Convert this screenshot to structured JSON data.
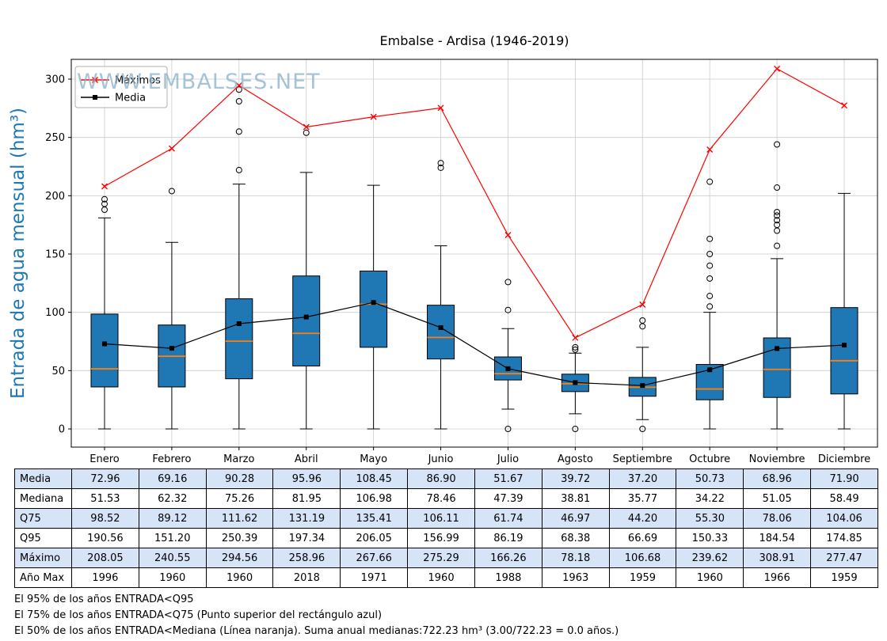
{
  "watermark": "WWW.EMBALSES.NET",
  "chart_data": {
    "type": "boxplot",
    "title": "Embalse - Ardisa (1946-2019)",
    "ylabel": "Entrada de agua mensual (hm³)",
    "categories": [
      "Enero",
      "Febrero",
      "Marzo",
      "Abril",
      "Mayo",
      "Junio",
      "Julio",
      "Agosto",
      "Septiembre",
      "Octubre",
      "Noviembre",
      "Diciembre"
    ],
    "ylim": [
      -16,
      317
    ],
    "yticks": [
      0,
      50,
      100,
      150,
      200,
      250,
      300
    ],
    "grid": true,
    "legend_position": "upper-left",
    "series": [
      {
        "name": "Máximos",
        "color": "#ff0000",
        "marker": "x",
        "values": [
          208.05,
          240.55,
          294.56,
          258.96,
          267.66,
          275.29,
          166.26,
          78.18,
          106.68,
          239.62,
          308.91,
          277.47
        ]
      },
      {
        "name": "Media",
        "color": "#000000",
        "marker": "square",
        "values": [
          72.96,
          69.16,
          90.28,
          95.96,
          108.45,
          86.9,
          51.67,
          39.72,
          37.2,
          50.73,
          68.96,
          71.9
        ]
      }
    ],
    "boxes": [
      {
        "q1": 36,
        "median": 51.53,
        "q3": 98.52,
        "whisker_low": 0,
        "whisker_high": 181,
        "outliers": [
          188,
          193,
          197
        ]
      },
      {
        "q1": 36,
        "median": 62.32,
        "q3": 89.12,
        "whisker_low": 0,
        "whisker_high": 160,
        "outliers": [
          204
        ]
      },
      {
        "q1": 43,
        "median": 75.26,
        "q3": 111.62,
        "whisker_low": 0,
        "whisker_high": 210,
        "outliers": [
          222,
          255,
          281,
          291
        ]
      },
      {
        "q1": 54,
        "median": 81.95,
        "q3": 131.19,
        "whisker_low": 0,
        "whisker_high": 220,
        "outliers": [
          254
        ]
      },
      {
        "q1": 70,
        "median": 106.98,
        "q3": 135.41,
        "whisker_low": 0,
        "whisker_high": 209,
        "outliers": []
      },
      {
        "q1": 60,
        "median": 78.46,
        "q3": 106.11,
        "whisker_low": 0,
        "whisker_high": 157,
        "outliers": [
          224,
          228
        ]
      },
      {
        "q1": 42,
        "median": 47.39,
        "q3": 61.74,
        "whisker_low": 17,
        "whisker_high": 86,
        "outliers": [
          0,
          102,
          126
        ]
      },
      {
        "q1": 32,
        "median": 38.81,
        "q3": 46.97,
        "whisker_low": 13,
        "whisker_high": 65,
        "outliers": [
          0,
          68,
          70
        ]
      },
      {
        "q1": 28,
        "median": 35.77,
        "q3": 44.2,
        "whisker_low": 8,
        "whisker_high": 70,
        "outliers": [
          0,
          88,
          93
        ]
      },
      {
        "q1": 25,
        "median": 34.22,
        "q3": 55.3,
        "whisker_low": 0,
        "whisker_high": 100,
        "outliers": [
          105,
          114,
          129,
          140,
          150,
          163,
          212
        ]
      },
      {
        "q1": 27,
        "median": 51.05,
        "q3": 78.06,
        "whisker_low": 0,
        "whisker_high": 146,
        "outliers": [
          157,
          170,
          175,
          179,
          183,
          186,
          207,
          244
        ]
      },
      {
        "q1": 30,
        "median": 58.49,
        "q3": 104.06,
        "whisker_low": 0,
        "whisker_high": 202,
        "outliers": []
      }
    ],
    "colors": {
      "box_fill": "#1f77b4",
      "box_edge": "#000000",
      "median": "#ff7f0e",
      "grid": "#cccccc",
      "ylabel": "#1f77b4",
      "watermark": "#8aafc8",
      "maximos_line": "#ff0000",
      "media_line": "#000000"
    }
  },
  "table": {
    "rows": [
      {
        "label": "Media",
        "values": [
          "72.96",
          "69.16",
          "90.28",
          "95.96",
          "108.45",
          "86.90",
          "51.67",
          "39.72",
          "37.20",
          "50.73",
          "68.96",
          "71.90"
        ]
      },
      {
        "label": "Mediana",
        "values": [
          "51.53",
          "62.32",
          "75.26",
          "81.95",
          "106.98",
          "78.46",
          "47.39",
          "38.81",
          "35.77",
          "34.22",
          "51.05",
          "58.49"
        ]
      },
      {
        "label": "Q75",
        "values": [
          "98.52",
          "89.12",
          "111.62",
          "131.19",
          "135.41",
          "106.11",
          "61.74",
          "46.97",
          "44.20",
          "55.30",
          "78.06",
          "104.06"
        ]
      },
      {
        "label": "Q95",
        "values": [
          "190.56",
          "151.20",
          "250.39",
          "197.34",
          "206.05",
          "156.99",
          "86.19",
          "68.38",
          "66.69",
          "150.33",
          "184.54",
          "174.85"
        ]
      },
      {
        "label": "Máximo",
        "values": [
          "208.05",
          "240.55",
          "294.56",
          "258.96",
          "267.66",
          "275.29",
          "166.26",
          "78.18",
          "106.68",
          "239.62",
          "308.91",
          "277.47"
        ]
      },
      {
        "label": "Año Max",
        "values": [
          "1996",
          "1960",
          "1960",
          "2018",
          "1971",
          "1960",
          "1988",
          "1963",
          "1959",
          "1960",
          "1966",
          "1959"
        ]
      }
    ]
  },
  "footer": {
    "lines": [
      "El 95% de los años ENTRADA<Q95",
      "El 75% de los años ENTRADA<Q75 (Punto superior del rectángulo azul)",
      "El 50% de los años ENTRADA<Mediana (Línea naranja). Suma anual medianas:722.23 hm³ (3.00/722.23 = 0.0 años.)"
    ]
  }
}
